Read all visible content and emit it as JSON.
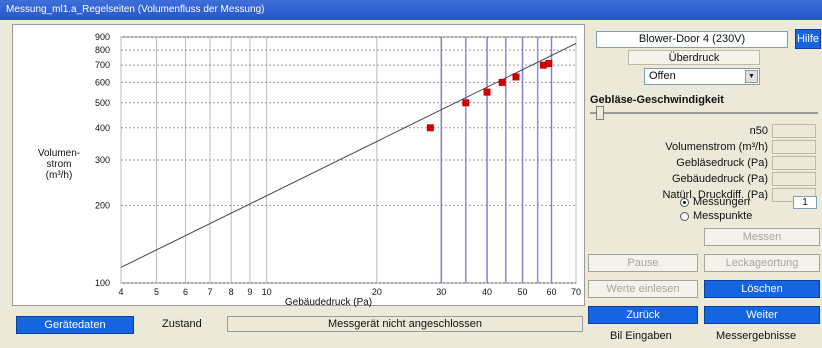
{
  "window": {
    "title": "Messung_ml1.a_Regelseiten (Volumenfluss der Messung)"
  },
  "chart_data": {
    "type": "scatter",
    "xscale": "log",
    "yscale": "log",
    "xlim": [
      4,
      70
    ],
    "ylim": [
      100,
      900
    ],
    "xticks": [
      "4",
      "5",
      "6",
      "7",
      "8",
      "9",
      "10",
      "20",
      "30",
      "40",
      "50",
      "60",
      "70"
    ],
    "yticks": [
      "100",
      "200",
      "300",
      "400",
      "500",
      "600",
      "700",
      "800",
      "900"
    ],
    "xlabel": "Gebäudedruck (Pa)",
    "ylabel_lines": [
      "Volumen-",
      "strom",
      "(m³/h)"
    ],
    "grid": true,
    "points": [
      {
        "x": 28,
        "y": 400
      },
      {
        "x": 35,
        "y": 500
      },
      {
        "x": 40,
        "y": 550
      },
      {
        "x": 44,
        "y": 600
      },
      {
        "x": 48,
        "y": 630
      },
      {
        "x": 57,
        "y": 700
      },
      {
        "x": 59,
        "y": 710
      }
    ],
    "fit_line": {
      "x": [
        4,
        70
      ],
      "y": [
        115,
        850
      ]
    },
    "highlight_x": [
      30,
      35,
      40,
      45,
      50,
      55,
      60
    ],
    "colors": {
      "points": "#cc0000",
      "highlight": "#6666dd",
      "fit": "#444444",
      "grid": "#bbbbbb"
    }
  },
  "blower": {
    "label": "Blower-Door 4 (230V)"
  },
  "help": {
    "label": "Hilfe"
  },
  "pressure_mode": {
    "label": "Überdruck"
  },
  "state": {
    "value": "Offen"
  },
  "speed": {
    "title": "Gebläse-Geschwindigkeit"
  },
  "readings": [
    {
      "label": "n50"
    },
    {
      "label": "Volumenstrom (m³/h)"
    },
    {
      "label": "Gebläsedruck (Pa)"
    },
    {
      "label": "Gebäudedruck (Pa)"
    },
    {
      "label": "Natürl. Druckdiff. (Pa)"
    }
  ],
  "radios": {
    "measurements": "Messungen",
    "points": "Messpunkte",
    "count": "1"
  },
  "buttons": {
    "measure": "Messen",
    "pause": "Pause",
    "leakage": "Leckageortung",
    "load_values": "Werte einlesen",
    "delete": "Löschen",
    "back": "Zurück",
    "next": "Weiter",
    "device": "Gerätedaten"
  },
  "status": {
    "label": "Zustand",
    "value": "Messgerät nicht angeschlossen"
  },
  "footer": {
    "left": "Bil Eingaben",
    "right": "Messergebnisse"
  }
}
